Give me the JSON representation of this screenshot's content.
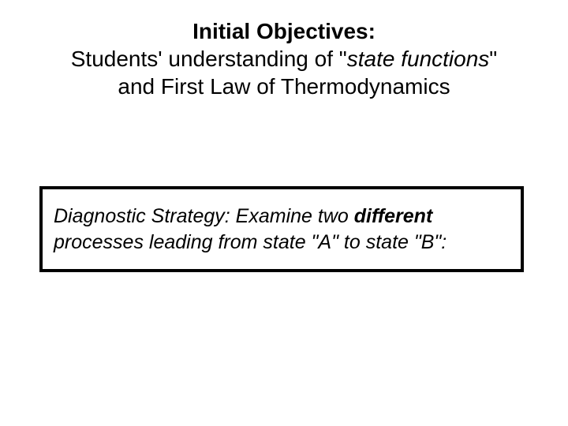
{
  "title": {
    "line1": "Initial Objectives:",
    "line2_pre": "Students' understanding  of \"",
    "line2_italic": "state functions",
    "line2_post": "\"",
    "line3": "and First Law of Thermodynamics"
  },
  "box": {
    "pre": "Diagnostic Strategy: Examine two ",
    "bold": "different",
    "post": " processes leading from state \"A\" to state \"B\":"
  },
  "style": {
    "background": "#ffffff",
    "text_color": "#000000",
    "title_fontsize": 28,
    "box_fontsize": 25,
    "box_border_width": 4,
    "box_border_color": "#000000"
  }
}
